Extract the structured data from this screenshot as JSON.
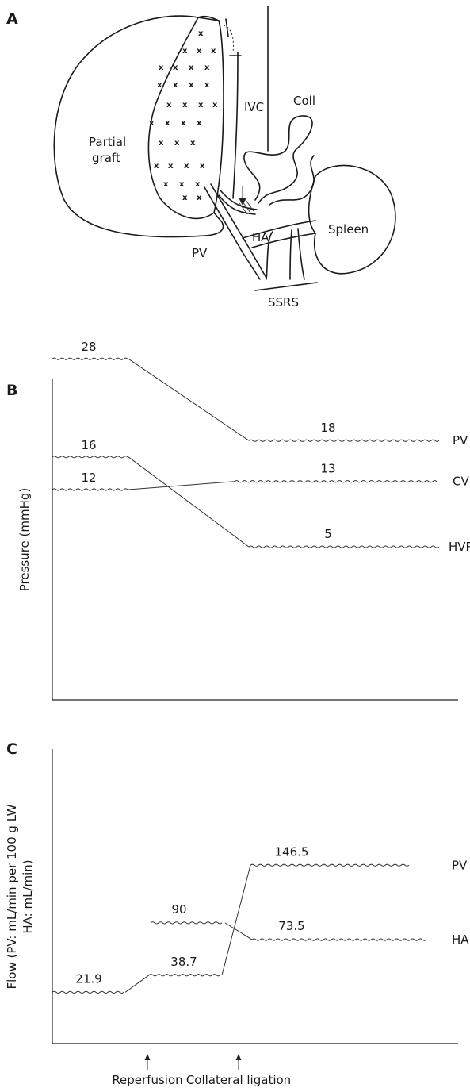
{
  "panels": {
    "a": "A",
    "b": "B",
    "c": "C"
  },
  "diagram_labels": {
    "graft": [
      "Partial",
      "graft"
    ],
    "ivc": "IVC",
    "coll": "Coll",
    "spleen": "Spleen",
    "pv": "PV",
    "ha": "HA",
    "ssrs": "SSRS"
  },
  "chart_data": [
    {
      "type": "line",
      "ylabel": "Pressure (mmHg)",
      "series": [
        {
          "name": "PV",
          "values": [
            28,
            18
          ]
        },
        {
          "name": "CVP",
          "values": [
            12,
            13
          ]
        },
        {
          "name": "HVPG",
          "values": [
            16,
            5
          ]
        }
      ]
    },
    {
      "type": "line",
      "ylabel": [
        "Flow (PV: mL/min per 100 g LW",
        "HA: mL/min)"
      ],
      "events": [
        "Reperfusion",
        "Collateral ligation"
      ],
      "series": [
        {
          "name": "PV",
          "values": [
            21.9,
            38.7,
            146.5
          ]
        },
        {
          "name": "HA",
          "values": [
            90,
            73.5
          ]
        }
      ]
    }
  ]
}
